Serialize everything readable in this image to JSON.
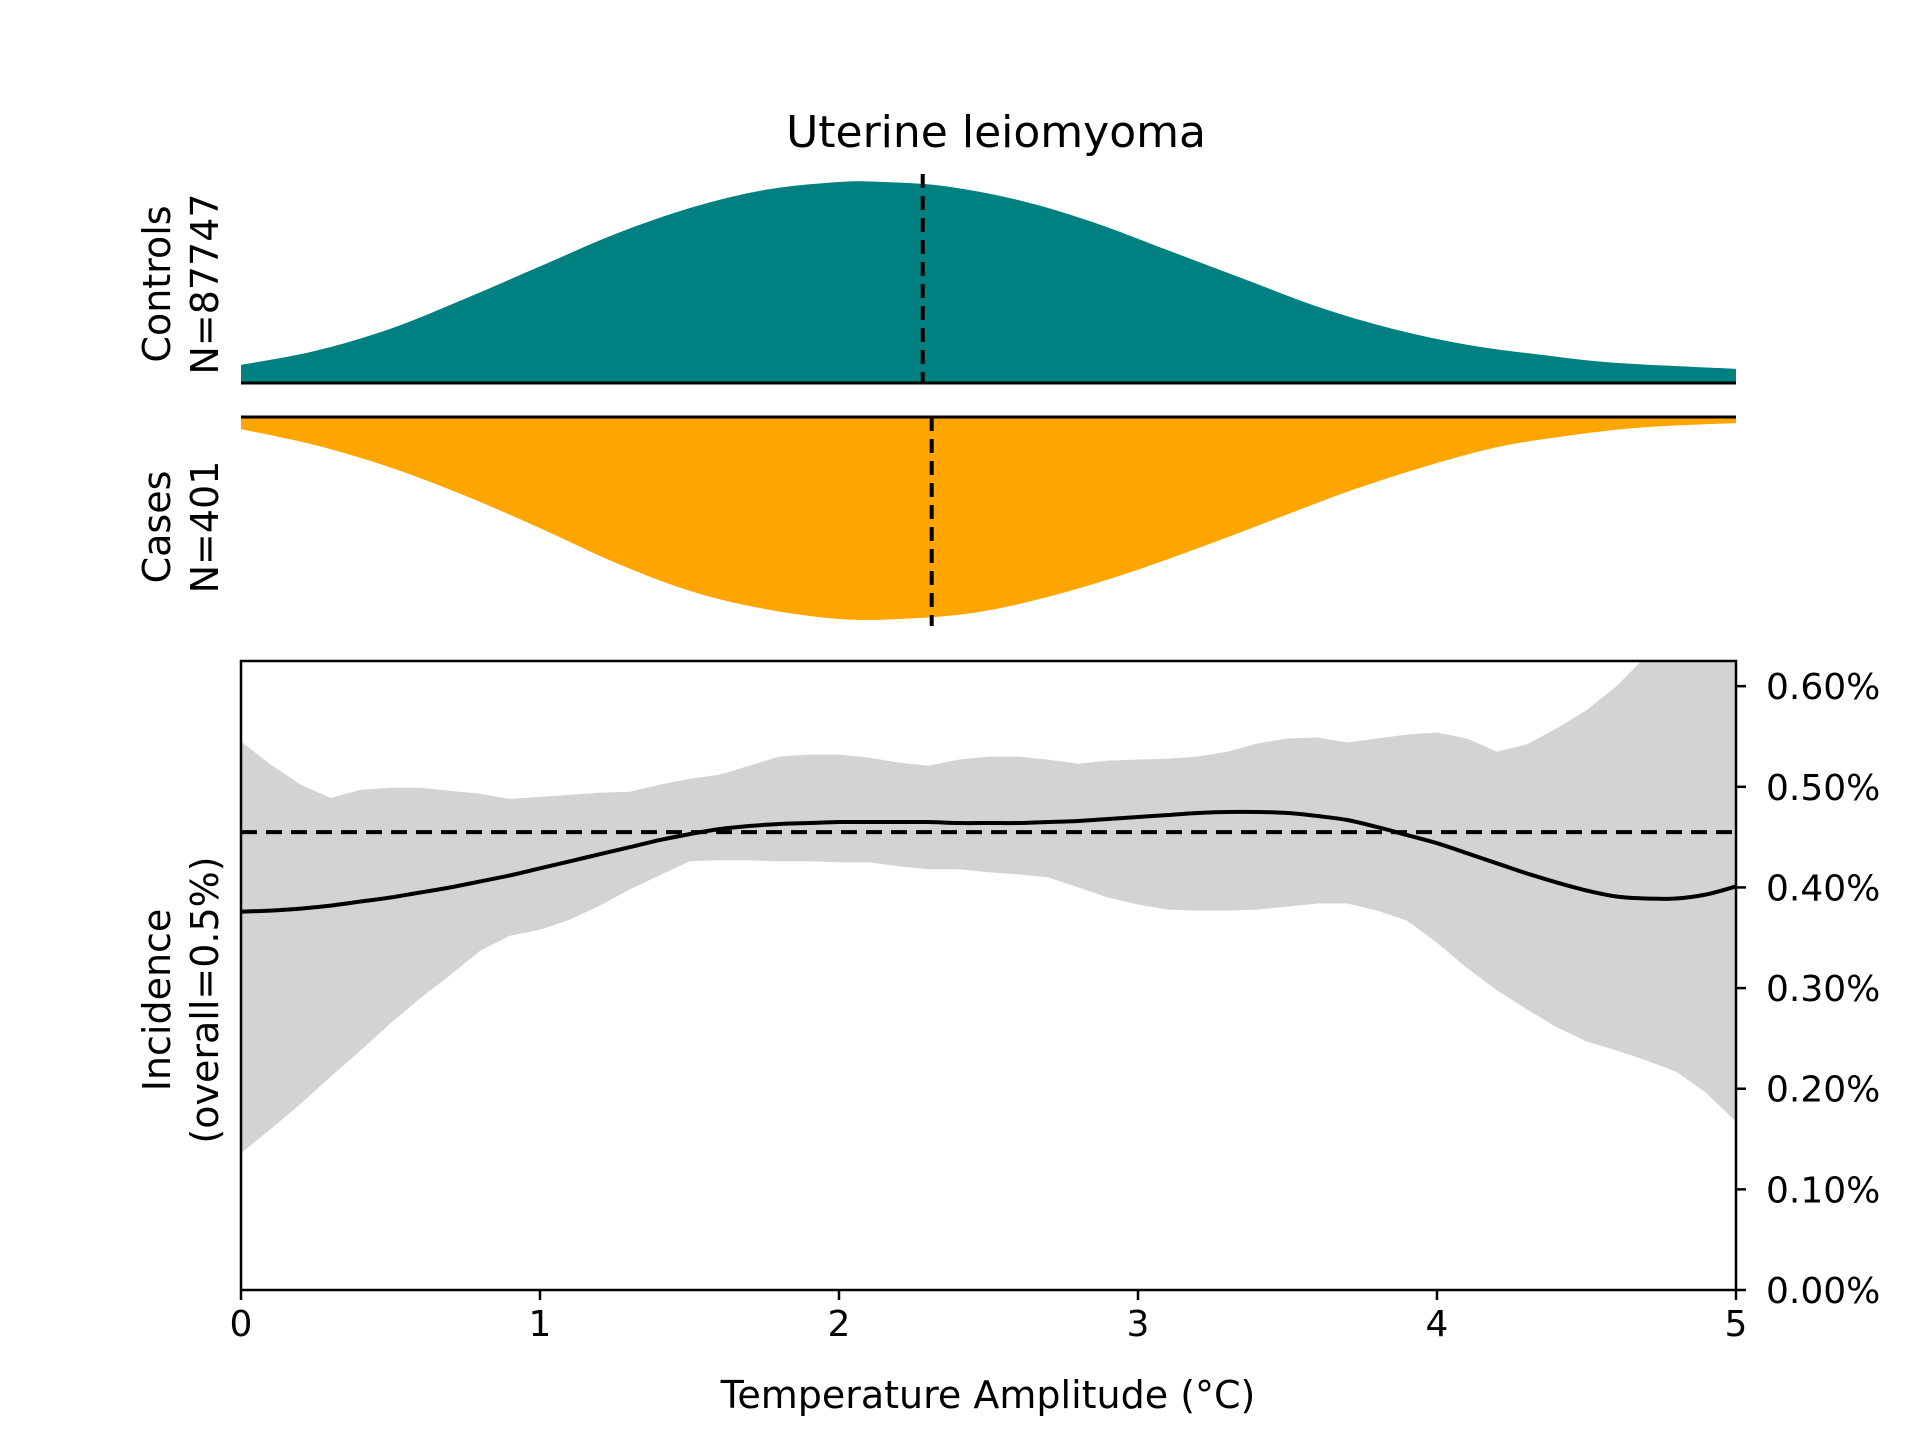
{
  "colors": {
    "controls_fill": "#008080",
    "cases_fill": "#ffa500",
    "ci_band": "#d3d3d3",
    "line": "#000000"
  },
  "chart_data": {
    "type": "area",
    "title": "Uterine leiomyoma",
    "xlabel": "Temperature Amplitude (°C)",
    "xlim": [
      0,
      5
    ],
    "x_ticks": [
      0,
      1,
      2,
      3,
      4,
      5
    ],
    "x_tick_labels": [
      "0",
      "1",
      "2",
      "3",
      "4",
      "5"
    ],
    "controls": {
      "label_line1": "Controls",
      "label_line2": "N=87747",
      "density": [
        [
          0,
          0.09
        ],
        [
          0.25,
          0.16
        ],
        [
          0.5,
          0.27
        ],
        [
          0.75,
          0.42
        ],
        [
          1,
          0.58
        ],
        [
          1.25,
          0.74
        ],
        [
          1.5,
          0.87
        ],
        [
          1.75,
          0.96
        ],
        [
          2,
          1.0
        ],
        [
          2.15,
          1.0
        ],
        [
          2.35,
          0.98
        ],
        [
          2.6,
          0.91
        ],
        [
          2.85,
          0.8
        ],
        [
          3.1,
          0.66
        ],
        [
          3.35,
          0.52
        ],
        [
          3.6,
          0.38
        ],
        [
          3.85,
          0.27
        ],
        [
          4.1,
          0.19
        ],
        [
          4.35,
          0.14
        ],
        [
          4.6,
          0.1
        ],
        [
          5,
          0.07
        ]
      ],
      "median": 2.28
    },
    "cases": {
      "label_line1": "Cases",
      "label_line2": "N=401",
      "density": [
        [
          0,
          0.06
        ],
        [
          0.25,
          0.14
        ],
        [
          0.5,
          0.25
        ],
        [
          0.75,
          0.39
        ],
        [
          1,
          0.55
        ],
        [
          1.25,
          0.72
        ],
        [
          1.5,
          0.86
        ],
        [
          1.75,
          0.95
        ],
        [
          2,
          1.0
        ],
        [
          2.2,
          1.0
        ],
        [
          2.45,
          0.97
        ],
        [
          2.7,
          0.89
        ],
        [
          2.95,
          0.78
        ],
        [
          3.2,
          0.65
        ],
        [
          3.45,
          0.51
        ],
        [
          3.7,
          0.37
        ],
        [
          3.95,
          0.25
        ],
        [
          4.2,
          0.15
        ],
        [
          4.45,
          0.09
        ],
        [
          4.7,
          0.05
        ],
        [
          5,
          0.03
        ]
      ],
      "median": 2.31
    },
    "incidence": {
      "ylabel_line1": "Incidence",
      "ylabel_line2": "(overall=0.5%)",
      "ylim": [
        0,
        0.625
      ],
      "y_ticks": [
        0,
        0.1,
        0.2,
        0.3,
        0.4,
        0.5,
        0.6
      ],
      "y_tick_labels": [
        "0.00%",
        "0.10%",
        "0.20%",
        "0.30%",
        "0.40%",
        "0.50%",
        "0.60%"
      ],
      "overall_rate": 0.455,
      "x": [
        0,
        0.1,
        0.2,
        0.3,
        0.4,
        0.5,
        0.6,
        0.7,
        0.8,
        0.9,
        1.0,
        1.1,
        1.2,
        1.3,
        1.4,
        1.5,
        1.6,
        1.7,
        1.8,
        1.9,
        2.0,
        2.1,
        2.2,
        2.3,
        2.4,
        2.5,
        2.6,
        2.7,
        2.8,
        2.9,
        3.0,
        3.1,
        3.2,
        3.3,
        3.4,
        3.5,
        3.6,
        3.7,
        3.8,
        3.9,
        4.0,
        4.1,
        4.2,
        4.3,
        4.4,
        4.5,
        4.6,
        4.7,
        4.8,
        4.9,
        5.0
      ],
      "estimate": [
        0.376,
        0.377,
        0.379,
        0.382,
        0.386,
        0.39,
        0.395,
        0.4,
        0.406,
        0.412,
        0.419,
        0.426,
        0.433,
        0.44,
        0.447,
        0.453,
        0.458,
        0.461,
        0.463,
        0.464,
        0.465,
        0.465,
        0.465,
        0.465,
        0.464,
        0.464,
        0.464,
        0.465,
        0.466,
        0.468,
        0.47,
        0.472,
        0.474,
        0.475,
        0.475,
        0.474,
        0.471,
        0.467,
        0.46,
        0.452,
        0.444,
        0.434,
        0.424,
        0.414,
        0.405,
        0.397,
        0.391,
        0.389,
        0.389,
        0.393,
        0.401
      ],
      "ci_upper": [
        0.545,
        0.522,
        0.502,
        0.489,
        0.497,
        0.499,
        0.499,
        0.496,
        0.493,
        0.488,
        0.49,
        0.492,
        0.494,
        0.495,
        0.502,
        0.508,
        0.512,
        0.521,
        0.53,
        0.532,
        0.532,
        0.529,
        0.524,
        0.521,
        0.527,
        0.53,
        0.53,
        0.527,
        0.523,
        0.526,
        0.527,
        0.528,
        0.53,
        0.535,
        0.543,
        0.548,
        0.549,
        0.544,
        0.548,
        0.552,
        0.554,
        0.548,
        0.535,
        0.542,
        0.558,
        0.576,
        0.6,
        0.63,
        0.66,
        0.69,
        0.72
      ],
      "ci_lower": [
        0.136,
        0.16,
        0.185,
        0.212,
        0.238,
        0.265,
        0.29,
        0.313,
        0.337,
        0.352,
        0.358,
        0.368,
        0.382,
        0.398,
        0.412,
        0.426,
        0.427,
        0.427,
        0.426,
        0.426,
        0.425,
        0.425,
        0.421,
        0.418,
        0.418,
        0.415,
        0.413,
        0.41,
        0.4,
        0.39,
        0.383,
        0.378,
        0.377,
        0.377,
        0.378,
        0.381,
        0.384,
        0.384,
        0.377,
        0.367,
        0.345,
        0.32,
        0.298,
        0.279,
        0.261,
        0.247,
        0.238,
        0.228,
        0.217,
        0.196,
        0.167
      ]
    }
  }
}
